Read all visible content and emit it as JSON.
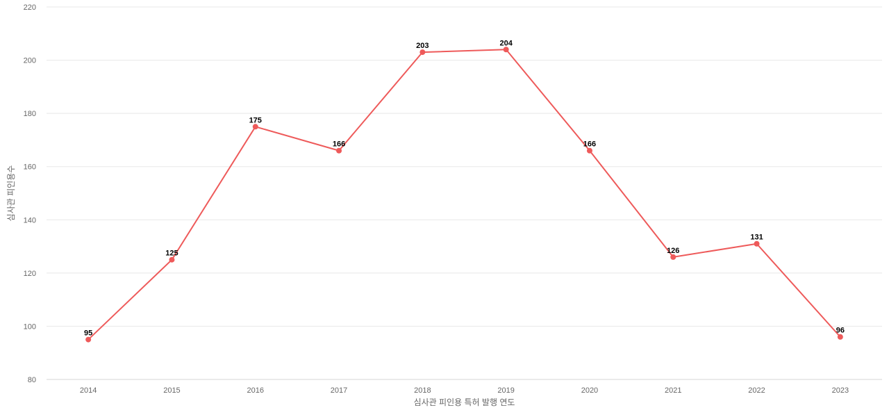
{
  "chart_data": {
    "type": "line",
    "title": "",
    "xlabel": "심사관 피인용 특허 발행 연도",
    "ylabel": "심사관 피인용수",
    "categories": [
      "2014",
      "2015",
      "2016",
      "2017",
      "2018",
      "2019",
      "2020",
      "2021",
      "2022",
      "2023"
    ],
    "series": [
      {
        "values": [
          95,
          125,
          175,
          166,
          203,
          204,
          166,
          126,
          131,
          96
        ],
        "color": "#ee5a5a"
      }
    ],
    "ylim": [
      80,
      220
    ],
    "yticks": [
      80,
      100,
      120,
      140,
      160,
      180,
      200,
      220
    ],
    "grid": true,
    "legend": "none",
    "data_labels": true
  }
}
